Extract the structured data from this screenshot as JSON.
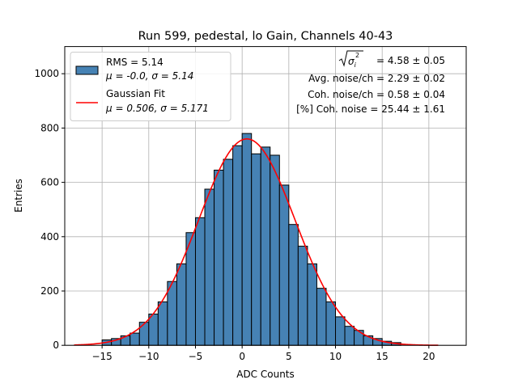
{
  "chart_data": {
    "type": "bar",
    "title": "Run 599, pedestal, lo Gain, Channels 40-43",
    "xlabel": "ADC Counts",
    "ylabel": "Entries",
    "xlim": [
      -19,
      24
    ],
    "ylim": [
      0,
      1100
    ],
    "xticks": [
      -15,
      -10,
      -5,
      0,
      5,
      10,
      15,
      20
    ],
    "yticks": [
      0,
      200,
      400,
      600,
      800,
      1000
    ],
    "grid": true,
    "legend_position": "top-left",
    "bin_width": 1,
    "bin_start": -15,
    "values": [
      20,
      25,
      35,
      45,
      85,
      115,
      160,
      235,
      300,
      415,
      470,
      575,
      645,
      685,
      735,
      780,
      705,
      730,
      700,
      590,
      445,
      365,
      300,
      210,
      160,
      105,
      70,
      55,
      35,
      25,
      15,
      10
    ],
    "series": [
      {
        "name": "RMS = 5.14",
        "name_line2": "μ = -0.0, σ = 5.14",
        "type": "histogram",
        "color": "#4682b4",
        "edgecolor": "#000000"
      },
      {
        "name": "Gaussian Fit",
        "name_line2": "μ = 0.506, σ = 5.171",
        "type": "line",
        "color": "#ff0000",
        "mu": 0.506,
        "sigma": 5.171,
        "amplitude": 760,
        "x_range": [
          -18,
          21
        ]
      }
    ],
    "annotations": [
      {
        "prefix": "",
        "radicand": "σ",
        "sub": "i",
        "sup": "2",
        "text": " = 4.58 ± 0.05"
      },
      {
        "text": "Avg. noise/ch = 2.29 ± 0.02"
      },
      {
        "text": "Coh. noise/ch = 0.58 ± 0.04"
      },
      {
        "text": "[%] Coh. noise = 25.44 ± 1.61"
      }
    ],
    "colors": {
      "bar": "#4682b4",
      "fit": "#ff0000",
      "grid": "#b0b0b0"
    }
  }
}
